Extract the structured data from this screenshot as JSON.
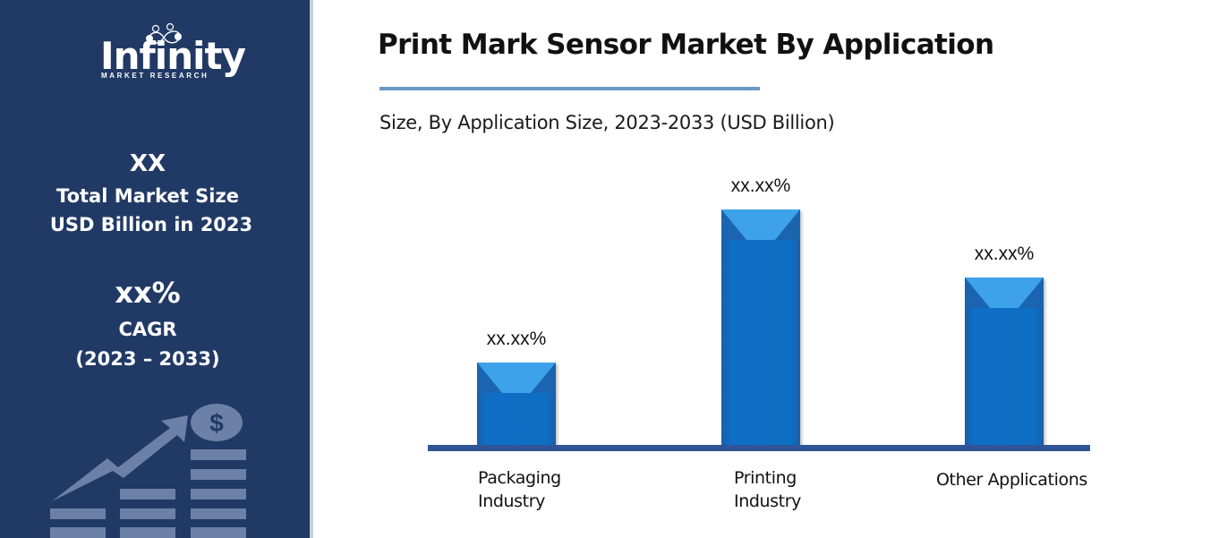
{
  "brand": {
    "name": "Infinity",
    "tagline": "MARKET RESEARCH"
  },
  "sidebar": {
    "market_size_value": "XX",
    "market_size_label_1": "Total Market Size",
    "market_size_label_2": "USD Billion in 2023",
    "cagr_value": "xx%",
    "cagr_label": "CAGR",
    "cagr_period": "(2023 – 2033)",
    "illustration": "growth-chart-dollar-icon"
  },
  "colors": {
    "sidebar_bg": "#213a65",
    "bar": "#0e6fc4",
    "bar_highlight": "#3ea2ea",
    "axis": "#2f5597",
    "title_rule": "#6a97c3"
  },
  "chart_data": {
    "type": "bar",
    "title": "Print Mark Sensor Market By Application",
    "subtitle": "Size, By Application Size, 2023-2033 (USD Billion)",
    "categories": [
      "Packaging Industry",
      "Printing Industry",
      "Other Applications"
    ],
    "category_lines": [
      [
        "Packaging",
        "Industry"
      ],
      [
        "Printing",
        "Industry"
      ],
      [
        "Other Applications",
        ""
      ]
    ],
    "values": [
      35,
      100,
      71
    ],
    "data_labels": [
      "xx.xx%",
      "xx.xx%",
      "xx.xx%"
    ],
    "xlabel": "",
    "ylabel": "",
    "ylim": [
      0,
      100
    ],
    "grid": false,
    "legend": "none",
    "note": "values are relative bar heights; actual values masked as xx.xx%"
  }
}
